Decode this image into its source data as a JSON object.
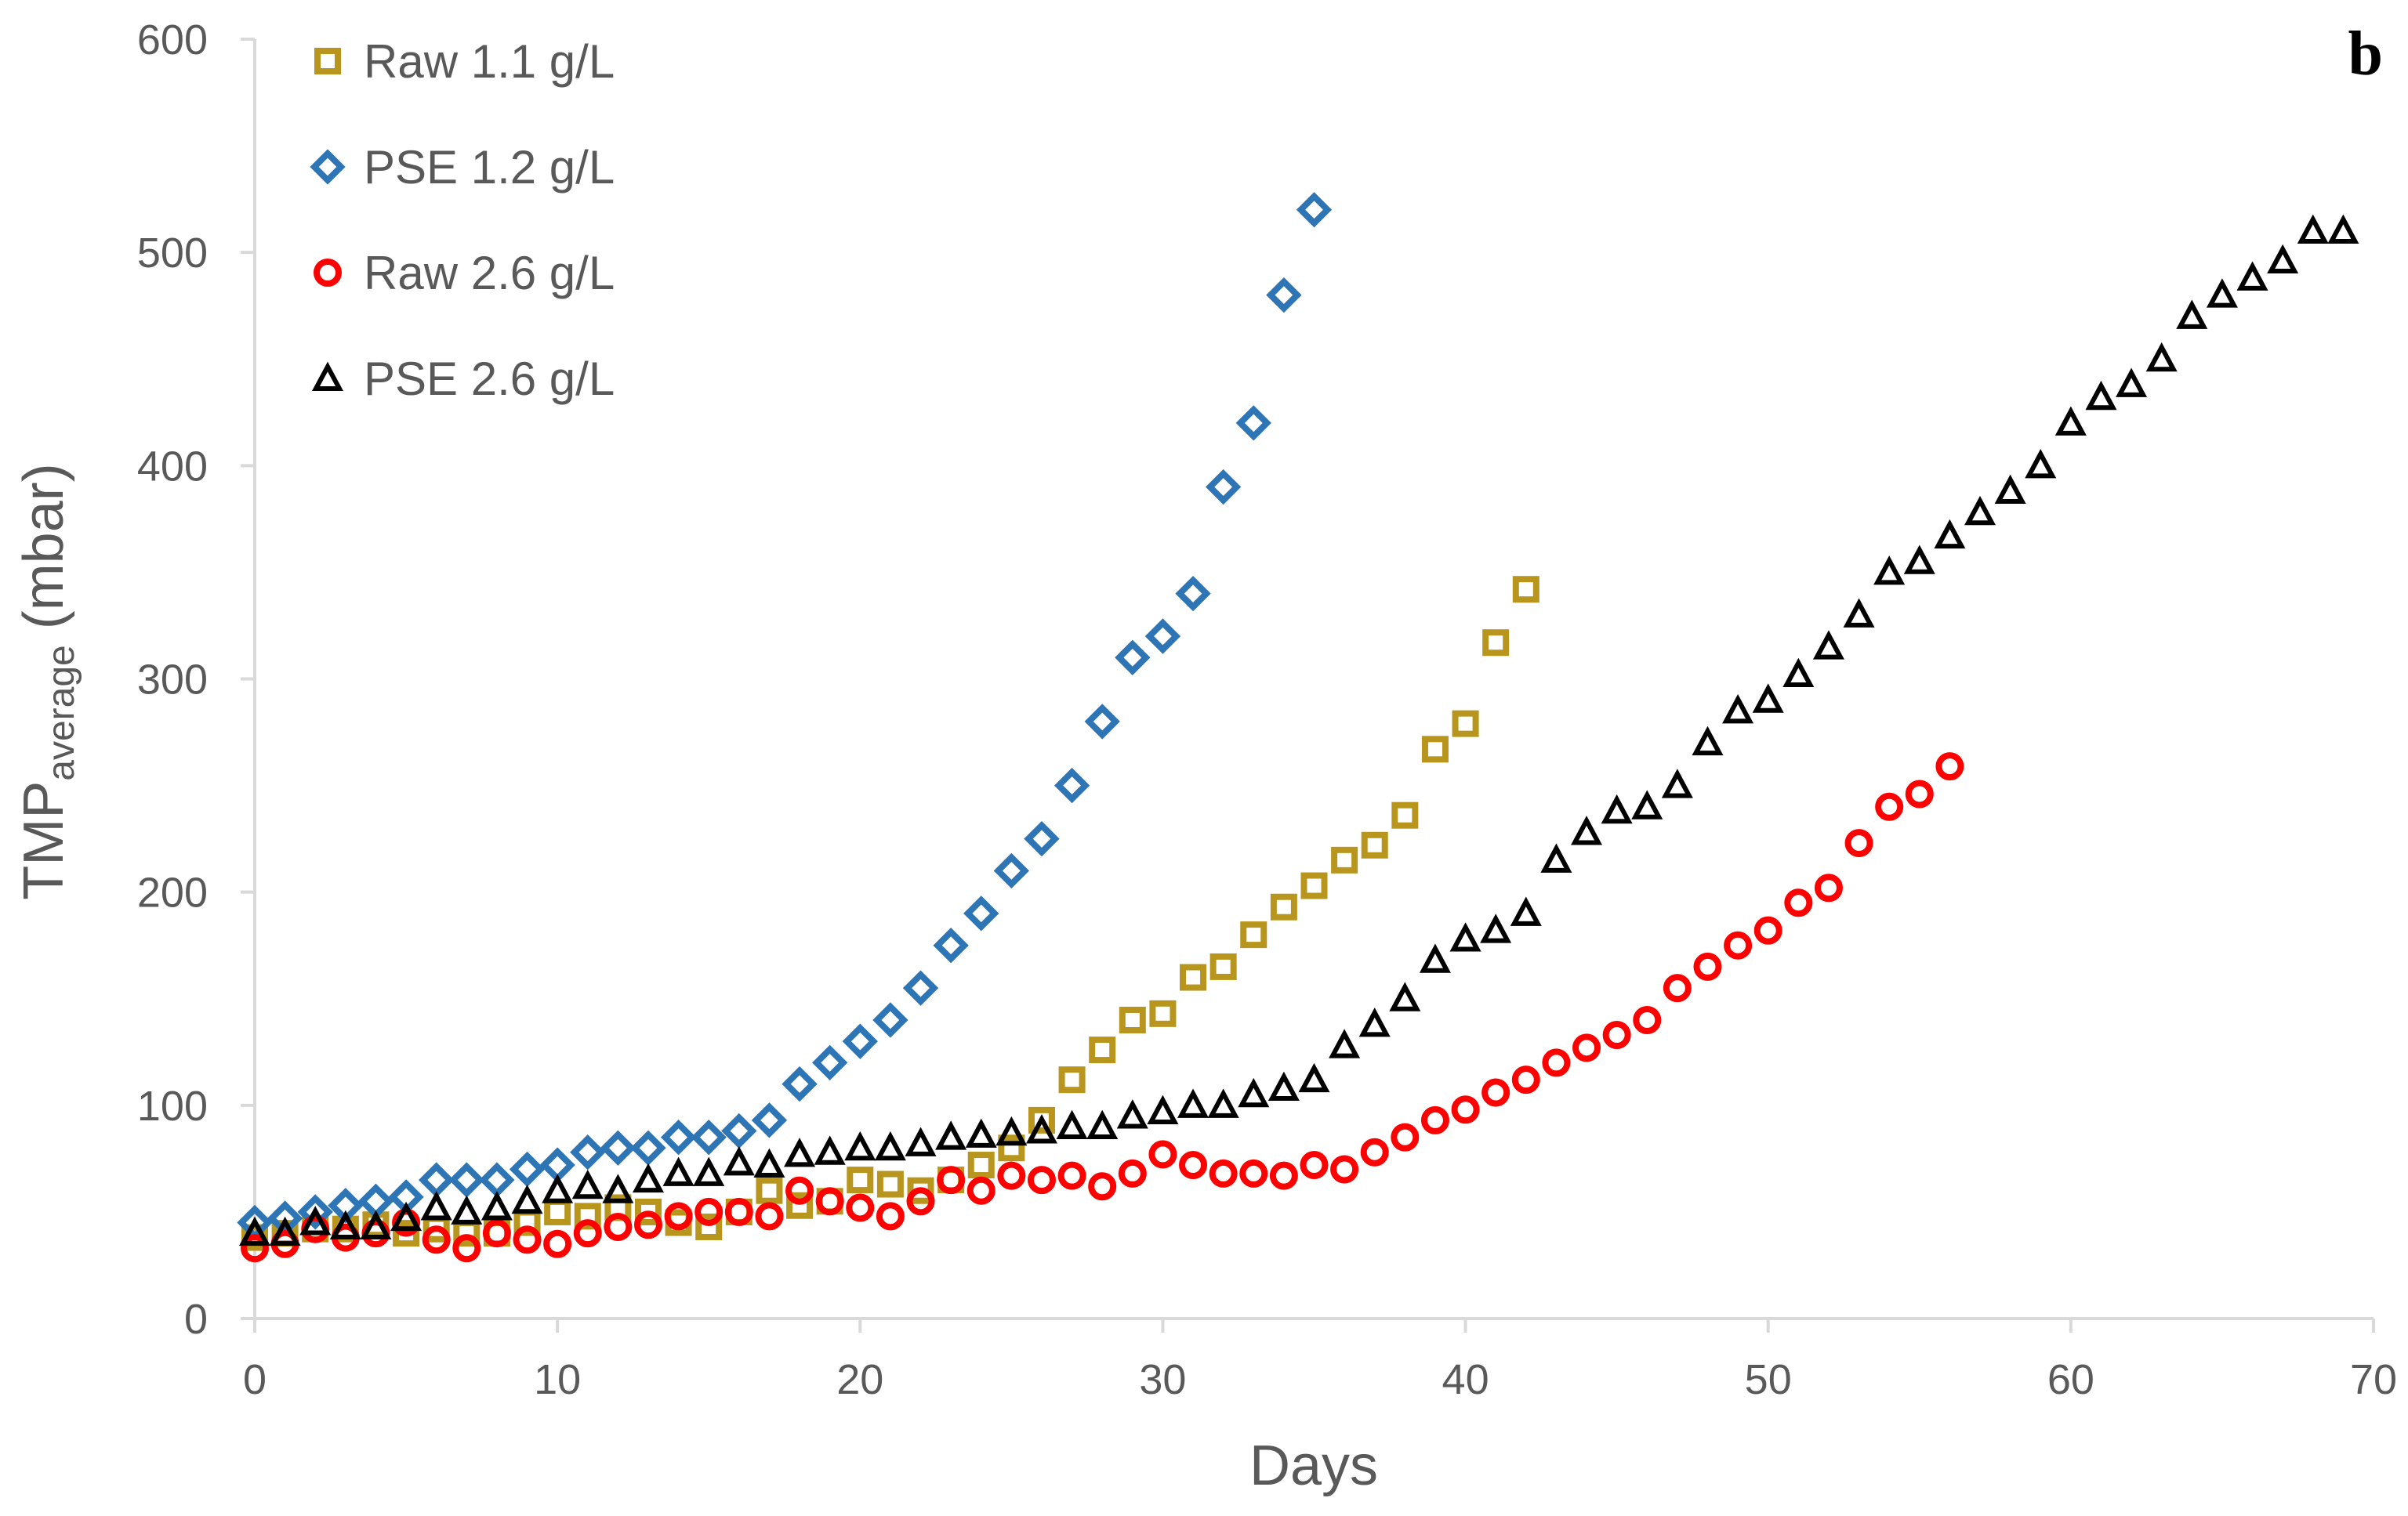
{
  "chart_data": {
    "type": "scatter",
    "panel_label": "b",
    "title": "",
    "xlabel": "Days",
    "ylabel": {
      "main": "TMP",
      "subscript": "average",
      "unit": " (mbar)"
    },
    "xlim": [
      0,
      70
    ],
    "ylim": [
      0,
      600
    ],
    "x_ticks": [
      0,
      10,
      20,
      30,
      40,
      50,
      60,
      70
    ],
    "y_ticks": [
      0,
      100,
      200,
      300,
      400,
      500,
      600
    ],
    "grid": false,
    "legend_position": "top-left",
    "series": [
      {
        "name": "Raw 1.1 g/L",
        "marker": "square",
        "color": "#B8961E",
        "x": [
          0,
          1,
          2,
          3,
          4,
          5,
          6,
          7,
          8,
          9,
          10,
          11,
          12,
          13,
          14,
          15,
          16,
          17,
          18,
          19,
          20,
          21,
          22,
          23,
          24,
          25,
          26,
          27,
          28,
          29,
          30,
          31,
          32,
          33,
          34,
          35,
          36,
          37,
          38,
          39,
          40,
          41,
          42
        ],
        "y": [
          38,
          40,
          42,
          42,
          44,
          40,
          42,
          40,
          40,
          45,
          50,
          48,
          52,
          50,
          45,
          43,
          50,
          60,
          53,
          55,
          65,
          63,
          60,
          65,
          72,
          80,
          93,
          112,
          126,
          140,
          143,
          160,
          165,
          180,
          193,
          203,
          215,
          222,
          236,
          267,
          279,
          317,
          342
        ]
      },
      {
        "name": "PSE 1.2 g/L",
        "marker": "diamond",
        "color": "#2E75B6",
        "x": [
          0,
          1,
          2,
          3,
          4,
          5,
          6,
          7,
          8,
          9,
          10,
          11,
          12,
          13,
          14,
          15,
          16,
          17,
          18,
          19,
          20,
          21,
          22,
          23,
          24,
          25,
          26,
          27,
          28,
          29,
          30,
          31,
          32,
          33,
          34,
          35
        ],
        "y": [
          45,
          47,
          50,
          53,
          55,
          57,
          65,
          65,
          65,
          70,
          72,
          78,
          80,
          80,
          85,
          85,
          88,
          93,
          110,
          120,
          130,
          140,
          155,
          175,
          190,
          210,
          225,
          250,
          280,
          310,
          320,
          340,
          390,
          420,
          480,
          520
        ]
      },
      {
        "name": "Raw 2.6 g/L",
        "marker": "circle",
        "color": "#FF0000",
        "x": [
          0,
          1,
          2,
          3,
          4,
          5,
          6,
          7,
          8,
          9,
          10,
          11,
          12,
          13,
          14,
          15,
          16,
          17,
          18,
          19,
          20,
          21,
          22,
          23,
          24,
          25,
          26,
          27,
          28,
          29,
          30,
          31,
          32,
          33,
          34,
          35,
          36,
          37,
          38,
          39,
          40,
          41,
          42,
          43,
          44,
          45,
          46,
          47,
          48,
          49,
          50,
          51,
          52,
          53,
          54,
          55,
          56
        ],
        "y": [
          33,
          35,
          42,
          38,
          40,
          45,
          37,
          33,
          40,
          37,
          35,
          40,
          43,
          44,
          48,
          50,
          50,
          48,
          60,
          55,
          52,
          48,
          55,
          65,
          60,
          67,
          65,
          67,
          62,
          68,
          77,
          72,
          68,
          68,
          67,
          72,
          70,
          78,
          85,
          93,
          98,
          106,
          112,
          120,
          127,
          133,
          140,
          155,
          165,
          175,
          182,
          195,
          202,
          223,
          240,
          246,
          259
        ]
      },
      {
        "name": "PSE 2.6 g/L",
        "marker": "triangle",
        "color": "#000000",
        "x": [
          0,
          1,
          2,
          3,
          4,
          5,
          6,
          7,
          8,
          9,
          10,
          11,
          12,
          13,
          14,
          15,
          16,
          17,
          18,
          19,
          20,
          21,
          22,
          23,
          24,
          25,
          26,
          27,
          28,
          29,
          30,
          31,
          32,
          33,
          34,
          35,
          36,
          37,
          38,
          39,
          40,
          41,
          42,
          43,
          44,
          45,
          46,
          47,
          48,
          49,
          50,
          51,
          52,
          53,
          54,
          55,
          56,
          57,
          58,
          59,
          60,
          61,
          62,
          63,
          64,
          65,
          66,
          67,
          68,
          69
        ],
        "y": [
          40,
          40,
          45,
          43,
          43,
          47,
          52,
          50,
          52,
          55,
          60,
          62,
          60,
          65,
          68,
          68,
          73,
          72,
          77,
          78,
          80,
          80,
          82,
          85,
          86,
          87,
          88,
          90,
          90,
          95,
          97,
          100,
          100,
          105,
          108,
          112,
          128,
          138,
          150,
          168,
          178,
          182,
          190,
          215,
          228,
          238,
          240,
          250,
          270,
          285,
          290,
          302,
          315,
          330,
          350,
          355,
          367,
          378,
          388,
          400,
          420,
          432,
          438,
          450,
          470,
          480,
          488,
          496,
          510,
          510
        ]
      }
    ]
  }
}
